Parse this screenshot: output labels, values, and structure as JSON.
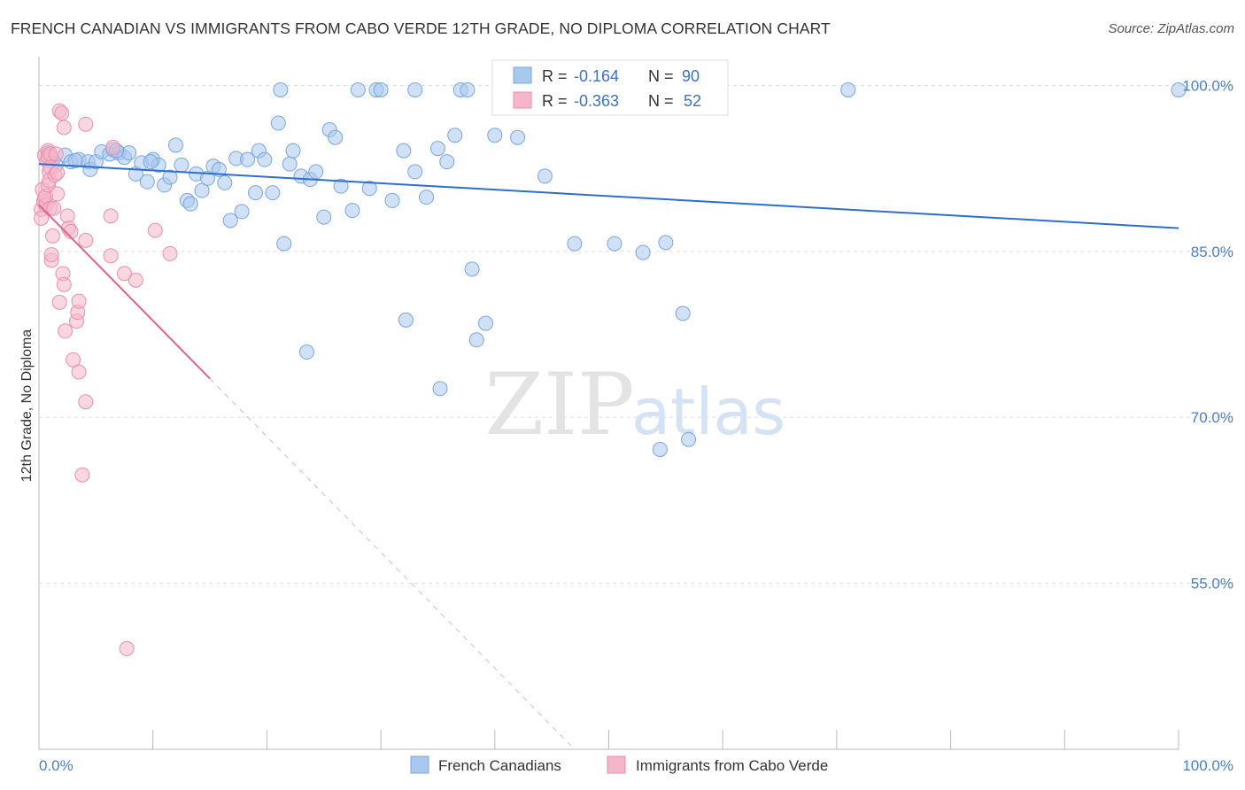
{
  "title": "FRENCH CANADIAN VS IMMIGRANTS FROM CABO VERDE 12TH GRADE, NO DIPLOMA CORRELATION CHART",
  "source": "Source: ZipAtlas.com",
  "watermark": {
    "zip": "ZIP",
    "atlas": "atlas"
  },
  "colors": {
    "blue": "#a9c8ee",
    "blue_stroke": "#7aa6de",
    "blue_line": "#2d6fd0",
    "pink": "#f4b6c8",
    "pink_stroke": "#ea8fab",
    "pink_line": "#e0628f",
    "tick_label": "#4a7fc9",
    "grid": "#dddddd"
  },
  "legend_stats": {
    "placement": "top-center",
    "rows": [
      {
        "r_label": "R =",
        "r_value": "-0.164",
        "n_label": "N =",
        "n_value": "90"
      },
      {
        "r_label": "R =",
        "r_value": "-0.363",
        "n_label": "N =",
        "n_value": "52"
      }
    ]
  },
  "chart_data": {
    "type": "scatter",
    "title": "FRENCH CANADIAN VS IMMIGRANTS FROM CABO VERDE 12TH GRADE, NO DIPLOMA CORRELATION CHART",
    "xlabel": "",
    "ylabel": "12th Grade, No Diploma",
    "xlim": [
      0,
      100
    ],
    "ylim": [
      40,
      102.6
    ],
    "x_tick_labels": [
      {
        "value": 0,
        "label": "0.0%"
      },
      {
        "value": 100,
        "label": "100.0%"
      }
    ],
    "y_tick_labels": [
      {
        "value": 100,
        "label": "100.0%"
      },
      {
        "value": 85,
        "label": "85.0%"
      },
      {
        "value": 70,
        "label": "70.0%"
      },
      {
        "value": 55,
        "label": "55.0%"
      }
    ],
    "grid": true,
    "legend": "bottom-center",
    "series": [
      {
        "name": "French Canadians",
        "color": "#a9c8ee",
        "trend": {
          "x": [
            0,
            100
          ],
          "y": [
            92.9,
            87.1
          ]
        },
        "points": [
          [
            0.8,
            93.9
          ],
          [
            1.2,
            93.3
          ],
          [
            1.5,
            92.8
          ],
          [
            2.3,
            93.7
          ],
          [
            2.8,
            93.1
          ],
          [
            3.5,
            93.3
          ],
          [
            4.3,
            93.1
          ],
          [
            4.5,
            92.4
          ],
          [
            5.0,
            93.1
          ],
          [
            5.5,
            94.0
          ],
          [
            6.2,
            93.8
          ],
          [
            6.5,
            94.2
          ],
          [
            7.0,
            93.9
          ],
          [
            7.5,
            93.5
          ],
          [
            7.9,
            93.9
          ],
          [
            8.5,
            92.0
          ],
          [
            9.0,
            93.0
          ],
          [
            9.5,
            91.3
          ],
          [
            10.0,
            93.3
          ],
          [
            10.5,
            92.8
          ],
          [
            11.0,
            91.0
          ],
          [
            11.5,
            91.7
          ],
          [
            12.0,
            94.6
          ],
          [
            12.5,
            92.8
          ],
          [
            13.0,
            89.6
          ],
          [
            13.3,
            89.3
          ],
          [
            13.8,
            92.0
          ],
          [
            14.3,
            90.5
          ],
          [
            14.8,
            91.6
          ],
          [
            15.3,
            92.7
          ],
          [
            15.8,
            92.4
          ],
          [
            16.3,
            91.2
          ],
          [
            16.8,
            87.8
          ],
          [
            17.3,
            93.4
          ],
          [
            17.8,
            88.6
          ],
          [
            18.3,
            93.3
          ],
          [
            19.0,
            90.3
          ],
          [
            19.3,
            94.1
          ],
          [
            19.8,
            93.3
          ],
          [
            20.5,
            90.3
          ],
          [
            21.0,
            96.6
          ],
          [
            21.5,
            85.7
          ],
          [
            22.0,
            92.9
          ],
          [
            22.3,
            94.1
          ],
          [
            23.0,
            91.8
          ],
          [
            23.5,
            75.9
          ],
          [
            23.8,
            91.5
          ],
          [
            24.3,
            92.2
          ],
          [
            25.0,
            88.1
          ],
          [
            25.5,
            96.0
          ],
          [
            26.0,
            95.3
          ],
          [
            26.5,
            90.9
          ],
          [
            27.5,
            88.7
          ],
          [
            28.0,
            99.6
          ],
          [
            29.0,
            90.7
          ],
          [
            29.6,
            99.6
          ],
          [
            30.0,
            99.6
          ],
          [
            31.0,
            89.6
          ],
          [
            32.0,
            94.1
          ],
          [
            32.2,
            78.8
          ],
          [
            33.0,
            92.2
          ],
          [
            33.0,
            99.6
          ],
          [
            34.0,
            89.9
          ],
          [
            35.0,
            94.3
          ],
          [
            35.2,
            72.6
          ],
          [
            35.8,
            93.1
          ],
          [
            36.5,
            95.5
          ],
          [
            37.0,
            99.6
          ],
          [
            37.6,
            99.6
          ],
          [
            38.0,
            83.4
          ],
          [
            38.4,
            77.0
          ],
          [
            39.2,
            78.5
          ],
          [
            40.0,
            95.5
          ],
          [
            42.0,
            95.3
          ],
          [
            44.4,
            91.8
          ],
          [
            46.0,
            99.6
          ],
          [
            47.0,
            85.7
          ],
          [
            50.5,
            85.7
          ],
          [
            53.0,
            84.9
          ],
          [
            54.5,
            67.1
          ],
          [
            55.0,
            85.8
          ],
          [
            56.5,
            79.4
          ],
          [
            57.0,
            68.0
          ],
          [
            71.0,
            99.6
          ],
          [
            100.0,
            99.6
          ],
          [
            1.0,
            93.6
          ],
          [
            3.2,
            93.2
          ],
          [
            6.8,
            94.1
          ],
          [
            9.8,
            93.1
          ],
          [
            21.2,
            99.6
          ]
        ]
      },
      {
        "name": "Immigrants from Cabo Verde",
        "color": "#f4b6c8",
        "trend": {
          "x": [
            0,
            15
          ],
          "y": [
            89.2,
            73.5
          ]
        },
        "trend_dashed": {
          "x": [
            15,
            47
          ],
          "y": [
            73.5,
            40.0
          ]
        },
        "points": [
          [
            0.2,
            88.8
          ],
          [
            0.2,
            88.0
          ],
          [
            0.3,
            90.6
          ],
          [
            0.4,
            89.5
          ],
          [
            0.5,
            89.8
          ],
          [
            0.5,
            93.7
          ],
          [
            0.6,
            89.2
          ],
          [
            0.6,
            90.0
          ],
          [
            0.7,
            93.2
          ],
          [
            0.8,
            91.0
          ],
          [
            0.8,
            94.1
          ],
          [
            0.8,
            93.6
          ],
          [
            0.9,
            92.2
          ],
          [
            0.9,
            91.4
          ],
          [
            1.0,
            88.9
          ],
          [
            1.0,
            93.8
          ],
          [
            1.0,
            92.6
          ],
          [
            1.1,
            84.2
          ],
          [
            1.1,
            84.7
          ],
          [
            1.2,
            86.4
          ],
          [
            1.3,
            88.9
          ],
          [
            1.4,
            91.9
          ],
          [
            1.5,
            93.8
          ],
          [
            1.6,
            90.2
          ],
          [
            1.6,
            92.1
          ],
          [
            1.8,
            80.4
          ],
          [
            1.8,
            97.7
          ],
          [
            2.0,
            97.5
          ],
          [
            2.1,
            83.0
          ],
          [
            2.2,
            82.0
          ],
          [
            2.2,
            96.2
          ],
          [
            2.3,
            77.8
          ],
          [
            2.5,
            88.2
          ],
          [
            2.6,
            87.1
          ],
          [
            2.8,
            86.8
          ],
          [
            3.0,
            75.2
          ],
          [
            3.3,
            78.7
          ],
          [
            3.4,
            79.5
          ],
          [
            3.5,
            80.5
          ],
          [
            3.5,
            74.1
          ],
          [
            3.8,
            64.8
          ],
          [
            4.1,
            86.0
          ],
          [
            4.1,
            71.4
          ],
          [
            4.1,
            96.5
          ],
          [
            6.3,
            88.2
          ],
          [
            6.3,
            84.6
          ],
          [
            6.5,
            94.4
          ],
          [
            7.5,
            83.0
          ],
          [
            7.7,
            49.1
          ],
          [
            8.5,
            82.4
          ],
          [
            10.2,
            86.9
          ],
          [
            11.5,
            84.8
          ]
        ]
      }
    ]
  }
}
